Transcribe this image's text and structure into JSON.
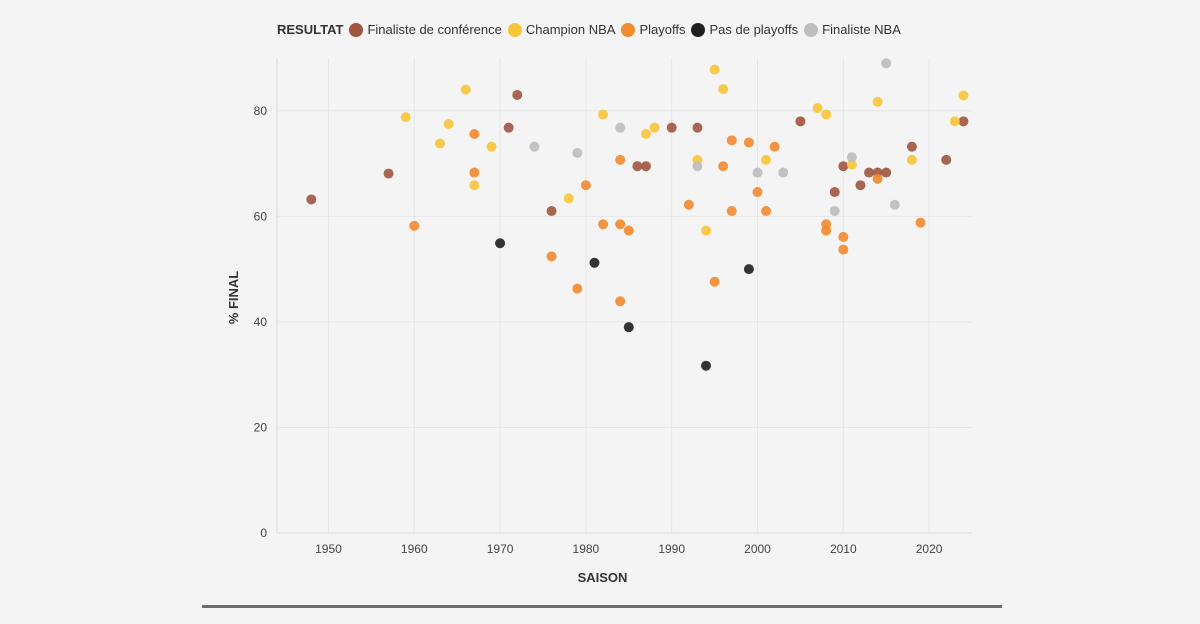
{
  "legend": {
    "title": "RESULTAT",
    "items": [
      {
        "label": "Finaliste de conférence",
        "color": "#a0553f"
      },
      {
        "label": "Champion NBA",
        "color": "#f7c53a"
      },
      {
        "label": "Playoffs",
        "color": "#f28a2e"
      },
      {
        "label": "Pas de playoffs",
        "color": "#1f1f1f"
      },
      {
        "label": "Finaliste NBA",
        "color": "#bdbdbd"
      }
    ]
  },
  "chart_data": {
    "type": "scatter",
    "xlabel": "SAISON",
    "ylabel": "% FINAL",
    "xlim": [
      1944,
      2025
    ],
    "ylim": [
      0,
      90
    ],
    "xticks": [
      1950,
      1960,
      1970,
      1980,
      1990,
      2000,
      2010,
      2020
    ],
    "yticks": [
      0,
      20,
      40,
      60,
      80
    ],
    "grid": true,
    "legend_position": "top",
    "series": [
      {
        "name": "Finaliste de conférence",
        "color": "#a0553f",
        "points": [
          [
            1948,
            63.2
          ],
          [
            1957,
            68.1
          ],
          [
            1971,
            76.8
          ],
          [
            1972,
            83.0
          ],
          [
            1976,
            61.0
          ],
          [
            1986,
            69.5
          ],
          [
            1987,
            69.5
          ],
          [
            1990,
            76.8
          ],
          [
            1993,
            76.8
          ],
          [
            2005,
            78.0
          ],
          [
            2009,
            64.6
          ],
          [
            2010,
            69.5
          ],
          [
            2012,
            65.9
          ],
          [
            2013,
            68.3
          ],
          [
            2014,
            68.3
          ],
          [
            2015,
            68.3
          ],
          [
            2018,
            73.2
          ],
          [
            2022,
            70.7
          ],
          [
            2024,
            78.0
          ]
        ]
      },
      {
        "name": "Champion NBA",
        "color": "#f7c53a",
        "points": [
          [
            1959,
            78.8
          ],
          [
            1963,
            73.8
          ],
          [
            1964,
            77.5
          ],
          [
            1966,
            84.0
          ],
          [
            1967,
            65.9
          ],
          [
            1969,
            73.2
          ],
          [
            1978,
            63.4
          ],
          [
            1982,
            79.3
          ],
          [
            1987,
            75.6
          ],
          [
            1988,
            76.8
          ],
          [
            1993,
            70.7
          ],
          [
            1994,
            57.3
          ],
          [
            1995,
            87.8
          ],
          [
            1996,
            84.1
          ],
          [
            2001,
            70.7
          ],
          [
            2007,
            80.5
          ],
          [
            2008,
            79.3
          ],
          [
            2011,
            69.8
          ],
          [
            2014,
            81.7
          ],
          [
            2018,
            70.7
          ],
          [
            2023,
            78.0
          ],
          [
            2024,
            82.9
          ]
        ]
      },
      {
        "name": "Playoffs",
        "color": "#f28a2e",
        "points": [
          [
            1960,
            58.2
          ],
          [
            1967,
            75.6
          ],
          [
            1967,
            68.3
          ],
          [
            1976,
            52.4
          ],
          [
            1979,
            46.3
          ],
          [
            1980,
            65.9
          ],
          [
            1982,
            58.5
          ],
          [
            1984,
            70.7
          ],
          [
            1984,
            58.5
          ],
          [
            1984,
            43.9
          ],
          [
            1985,
            57.3
          ],
          [
            1992,
            62.2
          ],
          [
            1995,
            47.6
          ],
          [
            1996,
            69.5
          ],
          [
            1997,
            74.4
          ],
          [
            1997,
            61.0
          ],
          [
            1999,
            74.0
          ],
          [
            2000,
            64.6
          ],
          [
            2001,
            61.0
          ],
          [
            2002,
            73.2
          ],
          [
            2008,
            58.5
          ],
          [
            2008,
            57.3
          ],
          [
            2010,
            56.1
          ],
          [
            2010,
            53.7
          ],
          [
            2014,
            67.1
          ],
          [
            2019,
            58.8
          ]
        ]
      },
      {
        "name": "Pas de playoffs",
        "color": "#1f1f1f",
        "points": [
          [
            1970,
            54.9
          ],
          [
            1981,
            51.2
          ],
          [
            1985,
            39.0
          ],
          [
            1994,
            31.7
          ],
          [
            1999,
            50.0
          ]
        ]
      },
      {
        "name": "Finaliste NBA",
        "color": "#bdbdbd",
        "points": [
          [
            1974,
            73.2
          ],
          [
            1979,
            72.0
          ],
          [
            1984,
            76.8
          ],
          [
            1993,
            69.5
          ],
          [
            2000,
            68.3
          ],
          [
            2003,
            68.3
          ],
          [
            2009,
            61.0
          ],
          [
            2011,
            71.2
          ],
          [
            2015,
            89.0
          ],
          [
            2016,
            62.2
          ]
        ]
      }
    ]
  }
}
